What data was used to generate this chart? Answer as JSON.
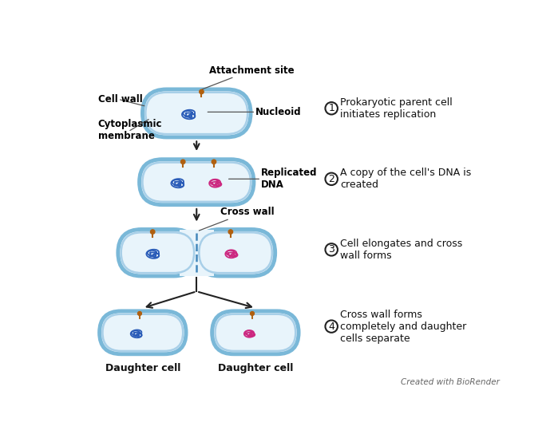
{
  "background_color": "#ffffff",
  "cell_fill": "#e8f4fb",
  "cell_outer_lw": 3.5,
  "cell_inner_lw": 1.8,
  "cell_outer_color": "#7ab8d8",
  "cell_inner_color": "#a8cfe8",
  "dna_blue_color": "#2a5cb8",
  "dna_pink_color": "#cc2880",
  "attachment_color": "#b06010",
  "arrow_color": "#222222",
  "label_color": "#111111",
  "label_bold_color": "#000000",
  "step_border": "#333333",
  "labels": {
    "attachment_site": "Attachment site",
    "cell_wall": "Cell wall",
    "cytoplasmic_membrane": "Cytoplasmic\nmembrane",
    "nucleoid": "Nucleoid",
    "replicated_dna": "Replicated\nDNA",
    "cross_wall": "Cross wall",
    "daughter_cell": "Daughter cell",
    "biorrender": "Created with BioRender"
  },
  "steps": [
    "Prokaryotic parent cell\ninitiates replication",
    "A copy of the cell's DNA is\ncreated",
    "Cell elongates and cross\nwall forms",
    "Cross wall forms\ncompletely and daughter\ncells separate"
  ],
  "fs_label": 8.5,
  "fs_bold": 8.5,
  "fs_step": 9,
  "fs_daughter": 9,
  "fs_bio": 7.5
}
